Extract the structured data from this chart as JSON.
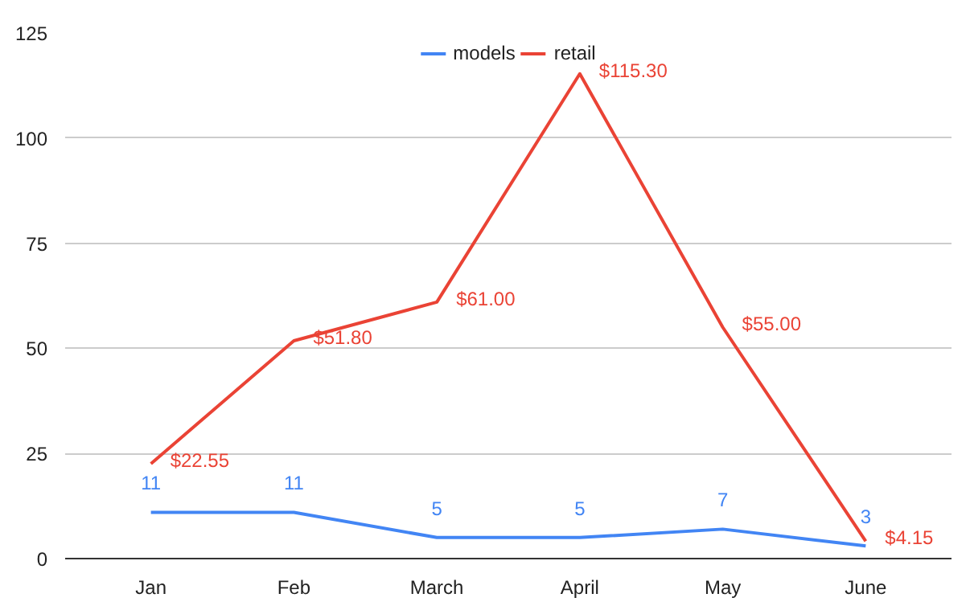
{
  "chart_data": {
    "type": "line",
    "categories": [
      "Jan",
      "Feb",
      "March",
      "April",
      "May",
      "June"
    ],
    "series": [
      {
        "name": "models",
        "color": "#4285f4",
        "values": [
          11,
          11,
          5,
          5,
          7,
          3
        ],
        "value_labels": [
          "11",
          "11",
          "5",
          "5",
          "7",
          "3"
        ]
      },
      {
        "name": "retail",
        "color": "#ea4335",
        "values": [
          22.55,
          51.8,
          61.0,
          115.3,
          55.0,
          4.15
        ],
        "value_labels": [
          "$22.55",
          "$51.80",
          "$61.00",
          "$115.30",
          "$55.00",
          "$4.15"
        ]
      }
    ],
    "ylim": [
      0,
      125
    ],
    "yticks": [
      0,
      25,
      50,
      75,
      100,
      125
    ],
    "grid": "y",
    "legend": "top",
    "marker": "none",
    "line_style": "solid"
  }
}
